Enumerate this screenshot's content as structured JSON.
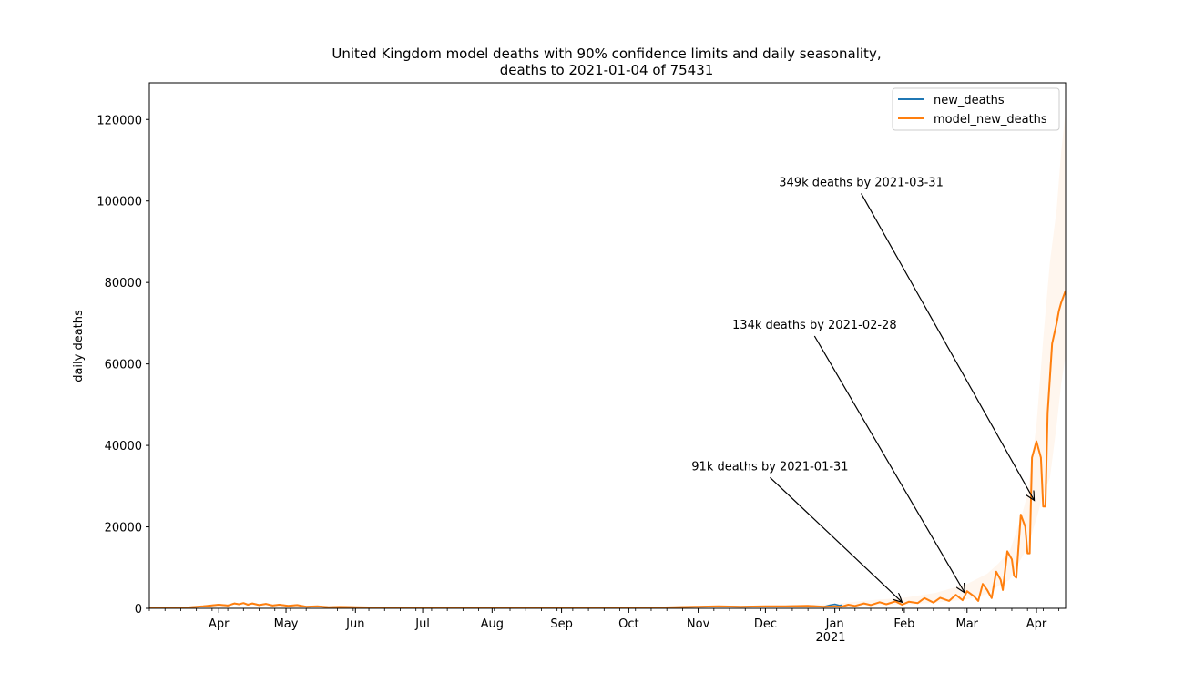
{
  "chart_data": {
    "type": "line",
    "title_line1": "United Kingdom model deaths with 90% confidence limits and daily seasonality,",
    "title_line2": "deaths to 2021-01-04 of 75431",
    "xlabel": "",
    "ylabel": "daily deaths",
    "ylim": [
      0,
      129000
    ],
    "xlim": [
      "2020-03-01",
      "2021-04-14"
    ],
    "y_ticks": [
      0,
      20000,
      40000,
      60000,
      80000,
      100000,
      120000
    ],
    "x_ticks": [
      {
        "label": "Apr",
        "date": "2020-04-01"
      },
      {
        "label": "May",
        "date": "2020-05-01"
      },
      {
        "label": "Jun",
        "date": "2020-06-01"
      },
      {
        "label": "Jul",
        "date": "2020-07-01"
      },
      {
        "label": "Aug",
        "date": "2020-08-01"
      },
      {
        "label": "Sep",
        "date": "2020-09-01"
      },
      {
        "label": "Oct",
        "date": "2020-10-01"
      },
      {
        "label": "Nov",
        "date": "2020-11-01"
      },
      {
        "label": "Dec",
        "date": "2020-12-01"
      },
      {
        "label": "Jan",
        "date": "2021-01-01"
      },
      {
        "label": "Feb",
        "date": "2021-02-01"
      },
      {
        "label": "Mar",
        "date": "2021-03-01"
      },
      {
        "label": "Apr",
        "date": "2021-04-01"
      }
    ],
    "x_year_label": "2021",
    "grid": false,
    "legend_position": "top-right",
    "series": [
      {
        "name": "new_deaths",
        "color": "#1f77b4",
        "x": [
          "2020-03-01",
          "2020-03-15",
          "2020-03-25",
          "2020-04-01",
          "2020-04-05",
          "2020-04-08",
          "2020-04-10",
          "2020-04-12",
          "2020-04-14",
          "2020-04-16",
          "2020-04-19",
          "2020-04-22",
          "2020-04-25",
          "2020-04-28",
          "2020-05-02",
          "2020-05-06",
          "2020-05-10",
          "2020-05-15",
          "2020-05-20",
          "2020-05-25",
          "2020-06-01",
          "2020-06-10",
          "2020-06-20",
          "2020-07-01",
          "2020-08-01",
          "2020-09-01",
          "2020-10-01",
          "2020-10-15",
          "2020-11-01",
          "2020-11-10",
          "2020-11-20",
          "2020-12-01",
          "2020-12-10",
          "2020-12-20",
          "2020-12-27",
          "2020-12-30",
          "2021-01-01",
          "2021-01-03",
          "2021-01-04"
        ],
        "y": [
          0,
          100,
          500,
          900,
          700,
          1200,
          1000,
          1300,
          900,
          1200,
          800,
          1100,
          700,
          900,
          600,
          800,
          400,
          500,
          300,
          350,
          300,
          200,
          100,
          50,
          50,
          50,
          100,
          200,
          400,
          500,
          400,
          500,
          500,
          600,
          400,
          800,
          1000,
          700,
          800
        ]
      },
      {
        "name": "model_new_deaths",
        "color": "#ff7f0e",
        "x": [
          "2020-03-01",
          "2020-03-15",
          "2020-03-25",
          "2020-04-01",
          "2020-04-05",
          "2020-04-08",
          "2020-04-10",
          "2020-04-12",
          "2020-04-14",
          "2020-04-16",
          "2020-04-19",
          "2020-04-22",
          "2020-04-25",
          "2020-04-28",
          "2020-05-02",
          "2020-05-06",
          "2020-05-10",
          "2020-05-15",
          "2020-05-20",
          "2020-05-25",
          "2020-06-01",
          "2020-06-10",
          "2020-06-20",
          "2020-07-01",
          "2020-08-01",
          "2020-09-01",
          "2020-10-01",
          "2020-10-15",
          "2020-11-01",
          "2020-11-10",
          "2020-11-20",
          "2020-12-01",
          "2020-12-10",
          "2020-12-20",
          "2020-12-27",
          "2021-01-01",
          "2021-01-04",
          "2021-01-07",
          "2021-01-10",
          "2021-01-14",
          "2021-01-17",
          "2021-01-21",
          "2021-01-24",
          "2021-01-28",
          "2021-01-31",
          "2021-02-03",
          "2021-02-07",
          "2021-02-10",
          "2021-02-14",
          "2021-02-17",
          "2021-02-21",
          "2021-02-24",
          "2021-02-27",
          "2021-03-01",
          "2021-03-04",
          "2021-03-06",
          "2021-03-08",
          "2021-03-10",
          "2021-03-12",
          "2021-03-14",
          "2021-03-16",
          "2021-03-17",
          "2021-03-19",
          "2021-03-21",
          "2021-03-22",
          "2021-03-23",
          "2021-03-25",
          "2021-03-27",
          "2021-03-28",
          "2021-03-29",
          "2021-03-30",
          "2021-04-01",
          "2021-04-03",
          "2021-04-04",
          "2021-04-05",
          "2021-04-06",
          "2021-04-08",
          "2021-04-10",
          "2021-04-11",
          "2021-04-12",
          "2021-04-14"
        ],
        "y": [
          0,
          100,
          500,
          900,
          700,
          1200,
          1000,
          1300,
          900,
          1200,
          800,
          1100,
          700,
          900,
          600,
          800,
          400,
          500,
          300,
          350,
          300,
          200,
          100,
          50,
          50,
          50,
          100,
          200,
          400,
          500,
          400,
          500,
          500,
          600,
          400,
          500,
          400,
          900,
          600,
          1200,
          800,
          1500,
          1000,
          1700,
          900,
          1600,
          1300,
          2500,
          1400,
          2600,
          1800,
          3300,
          2000,
          4200,
          3000,
          1800,
          6000,
          4500,
          2500,
          9000,
          7000,
          4500,
          14000,
          12000,
          8000,
          7500,
          23000,
          20000,
          13500,
          13500,
          37000,
          41000,
          37000,
          25000,
          25000,
          48000,
          65000,
          70000,
          73000,
          75000,
          78000
        ]
      }
    ],
    "confidence_band": {
      "color": "#ff7f0e",
      "x": [
        "2020-12-15",
        "2021-01-01",
        "2021-01-15",
        "2021-02-01",
        "2021-02-15",
        "2021-03-01",
        "2021-03-10",
        "2021-03-15",
        "2021-03-20",
        "2021-03-25",
        "2021-03-28",
        "2021-04-01",
        "2021-04-04",
        "2021-04-07",
        "2021-04-10",
        "2021-04-12",
        "2021-04-14"
      ],
      "lower": [
        300,
        400,
        700,
        900,
        1400,
        2200,
        3500,
        5500,
        7000,
        12000,
        15000,
        22000,
        28000,
        32000,
        45000,
        55000,
        62000
      ],
      "upper": [
        800,
        1100,
        1900,
        2600,
        3800,
        6000,
        8500,
        11000,
        14000,
        22000,
        28000,
        45000,
        66000,
        85000,
        98000,
        112000,
        122000
      ]
    },
    "annotations": [
      {
        "text": "91k deaths by 2021-01-31",
        "x": "2021-01-31",
        "y": 1500
      },
      {
        "text": "134k deaths by 2021-02-28",
        "x": "2021-02-28",
        "y": 3800
      },
      {
        "text": "349k deaths by 2021-03-31",
        "x": "2021-03-31",
        "y": 26500
      }
    ]
  }
}
